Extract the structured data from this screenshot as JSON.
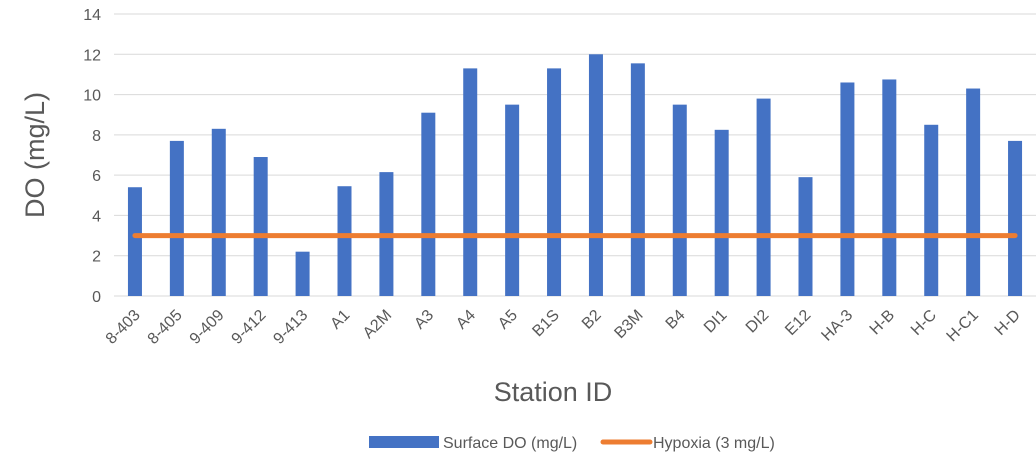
{
  "chart_data": {
    "type": "bar",
    "title": "",
    "xlabel": "Station ID",
    "ylabel": "DO (mg/L)",
    "ylim": [
      0,
      14
    ],
    "yticks": [
      0,
      2,
      4,
      6,
      8,
      10,
      12,
      14
    ],
    "grid": true,
    "legend_position": "bottom",
    "categories": [
      "8-403",
      "8-405",
      "9-409",
      "9-412",
      "9-413",
      "A1",
      "A2M",
      "A3",
      "A4",
      "A5",
      "B1S",
      "B2",
      "B3M",
      "B4",
      "DI1",
      "DI2",
      "E12",
      "HA-3",
      "H-B",
      "H-C",
      "H-C1",
      "H-D"
    ],
    "series": [
      {
        "name": "Surface DO (mg/L)",
        "type": "bar",
        "color": "#4472C4",
        "values": [
          5.4,
          7.7,
          8.3,
          6.9,
          2.2,
          5.45,
          6.15,
          9.1,
          11.3,
          9.5,
          11.3,
          12.0,
          11.55,
          9.5,
          8.25,
          9.8,
          5.9,
          10.6,
          10.75,
          8.5,
          10.3,
          7.7
        ]
      },
      {
        "name": "Hypoxia (3 mg/L)",
        "type": "line",
        "color": "#ED7D31",
        "values": [
          3,
          3,
          3,
          3,
          3,
          3,
          3,
          3,
          3,
          3,
          3,
          3,
          3,
          3,
          3,
          3,
          3,
          3,
          3,
          3,
          3,
          3
        ]
      }
    ]
  }
}
